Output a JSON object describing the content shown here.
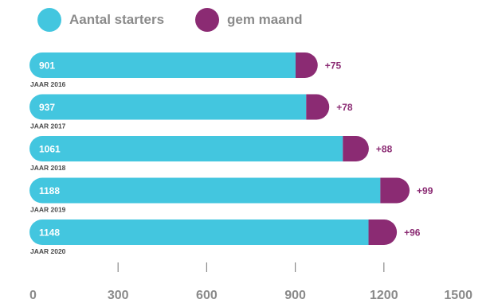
{
  "chart_data": {
    "type": "bar",
    "orientation": "horizontal",
    "stacked": true,
    "categories": [
      "JAAR 2016",
      "JAAR 2017",
      "JAAR 2018",
      "JAAR 2019",
      "JAAR 2020"
    ],
    "series": [
      {
        "name": "Aantal starters",
        "values": [
          901,
          937,
          1061,
          1188,
          1148
        ],
        "color": "#43c6df"
      },
      {
        "name": "gem maand",
        "values": [
          75,
          78,
          88,
          99,
          96
        ],
        "color": "#8b2b73"
      }
    ],
    "segment_labels": [
      "901",
      "937",
      "1061",
      "1188",
      "1148"
    ],
    "increment_labels": [
      "+75",
      "+78",
      "+88",
      "+99",
      "+96"
    ],
    "xlim": [
      0,
      1500
    ],
    "xticks": [
      0,
      300,
      600,
      900,
      1200,
      1500
    ],
    "xtick_labels": [
      "0",
      "300",
      "600",
      "900",
      "1200",
      "1500"
    ],
    "grid": false,
    "legend_position": "top-left"
  },
  "legend": {
    "items": [
      {
        "label": "Aantal starters",
        "color": "#43c6df"
      },
      {
        "label": "gem maand",
        "color": "#8b2b73"
      }
    ]
  },
  "colors": {
    "axis": "#8a8a8a",
    "category_label": "#4a4a4a",
    "tick_label": "#8a8a8a",
    "bar_value_text": "#ffffff",
    "increment_text": "#8b2b73"
  }
}
